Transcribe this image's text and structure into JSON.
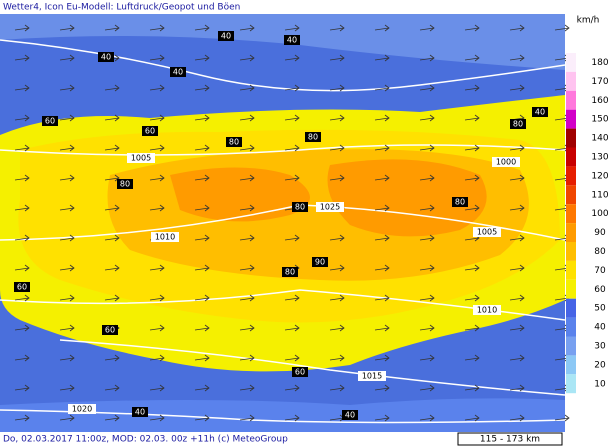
{
  "header": {
    "title": "Wetter4, Icon Eu-Modell: Luftdruck/Geopot und Böen"
  },
  "footer": {
    "text": "Do, 02.03.2017 11:00z, MOD: 02.03. 00z +11h (c) MeteoGroup",
    "scale": "115 - 173 km"
  },
  "legend": {
    "unit": "km/h",
    "levels": [
      {
        "value": 180,
        "color": "#fbeefb"
      },
      {
        "value": 170,
        "color": "#ffc3f0"
      },
      {
        "value": 160,
        "color": "#ff78dc"
      },
      {
        "value": 150,
        "color": "#d200c8"
      },
      {
        "value": 140,
        "color": "#a00000"
      },
      {
        "value": 130,
        "color": "#c80000"
      },
      {
        "value": 120,
        "color": "#e61e00"
      },
      {
        "value": 110,
        "color": "#f04600"
      },
      {
        "value": 100,
        "color": "#ff7800"
      },
      {
        "value": 90,
        "color": "#ff9b00"
      },
      {
        "value": 80,
        "color": "#ffbe00"
      },
      {
        "value": 70,
        "color": "#ffe100"
      },
      {
        "value": 60,
        "color": "#f5f000"
      },
      {
        "value": 50,
        "color": "#4664e6"
      },
      {
        "value": 40,
        "color": "#5a82ec"
      },
      {
        "value": 30,
        "color": "#78a0f0"
      },
      {
        "value": 20,
        "color": "#8cc8f5"
      },
      {
        "value": 10,
        "color": "#aae6f5"
      }
    ]
  },
  "map_labels": [
    "40",
    "40",
    "40",
    "40",
    "40",
    "60",
    "60",
    "80",
    "80",
    "80",
    "1000",
    "1005",
    "80",
    "80",
    "1010",
    "1025",
    "80",
    "1005",
    "90",
    "80",
    "60",
    "1010",
    "1015",
    "1020",
    "60",
    "60",
    "40",
    "40"
  ]
}
